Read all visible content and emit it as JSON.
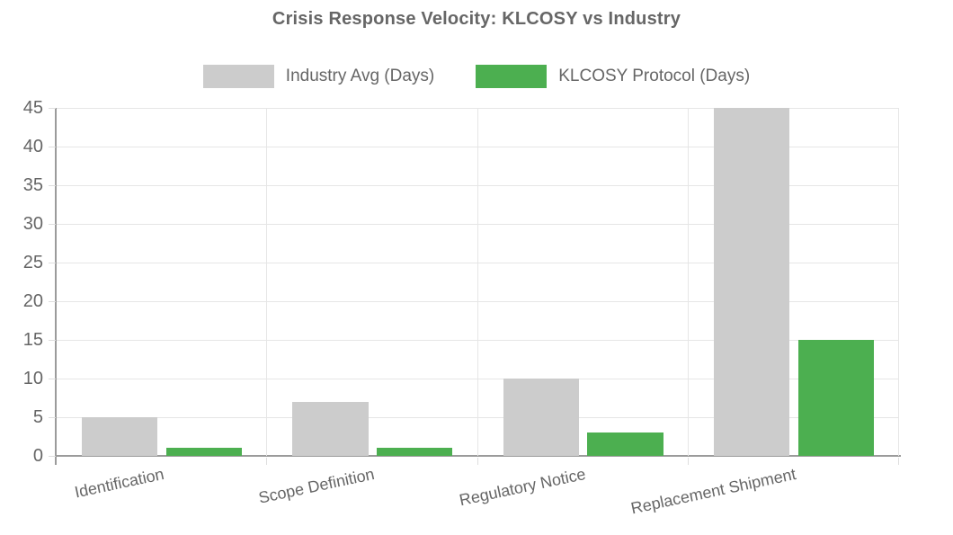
{
  "chart": {
    "title": "Crisis Response Velocity: KLCOSY vs Industry"
  },
  "chart_data": {
    "type": "bar",
    "title": "Crisis Response Velocity: KLCOSY vs Industry",
    "categories": [
      "Identification",
      "Scope Definition",
      "Regulatory Notice",
      "Replacement Shipment"
    ],
    "series": [
      {
        "name": "Industry Avg (Days)",
        "color": "#cccccc",
        "values": [
          5,
          7,
          10,
          45
        ]
      },
      {
        "name": "KLCOSY Protocol (Days)",
        "color": "#4caf50",
        "values": [
          1,
          1,
          3,
          15
        ]
      }
    ],
    "xlabel": "",
    "ylabel": "",
    "ylim": [
      0,
      45
    ],
    "ytick_step": 5,
    "yticks": [
      0,
      5,
      10,
      15,
      20,
      25,
      30,
      35,
      40,
      45
    ],
    "grid": true,
    "legend_position": "top",
    "colors": {
      "text": "#666666",
      "grid": "#e6e6e6",
      "axis": "#9b9b9b",
      "background": "#ffffff"
    }
  }
}
